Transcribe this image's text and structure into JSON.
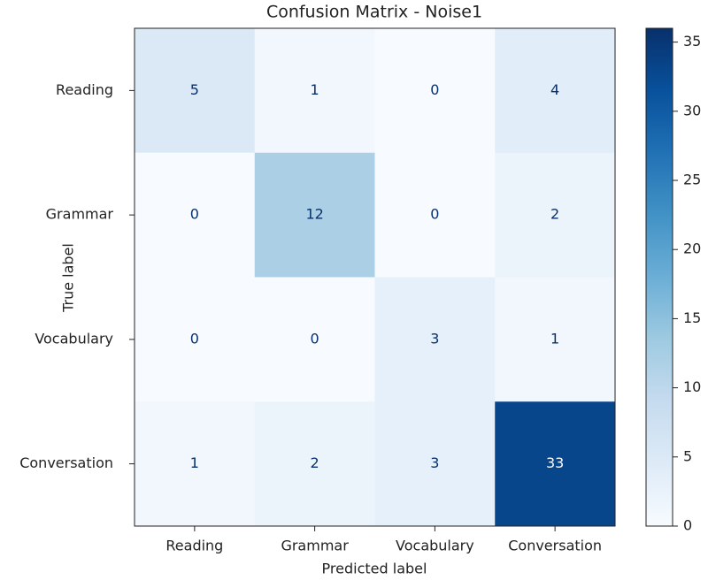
{
  "chart_data": {
    "type": "heatmap",
    "title": "Confusion Matrix - Noise1",
    "xlabel": "Predicted label",
    "ylabel": "True label",
    "x_categories": [
      "Reading",
      "Grammar",
      "Vocabulary",
      "Conversation"
    ],
    "y_categories": [
      "Reading",
      "Grammar",
      "Vocabulary",
      "Conversation"
    ],
    "values": [
      [
        5,
        1,
        0,
        4
      ],
      [
        0,
        12,
        0,
        2
      ],
      [
        0,
        0,
        3,
        1
      ],
      [
        1,
        2,
        3,
        33
      ]
    ],
    "colormap": "Blues",
    "zlim": [
      0,
      36
    ],
    "zticks": [
      0,
      5,
      10,
      15,
      20,
      25,
      30,
      35
    ]
  }
}
